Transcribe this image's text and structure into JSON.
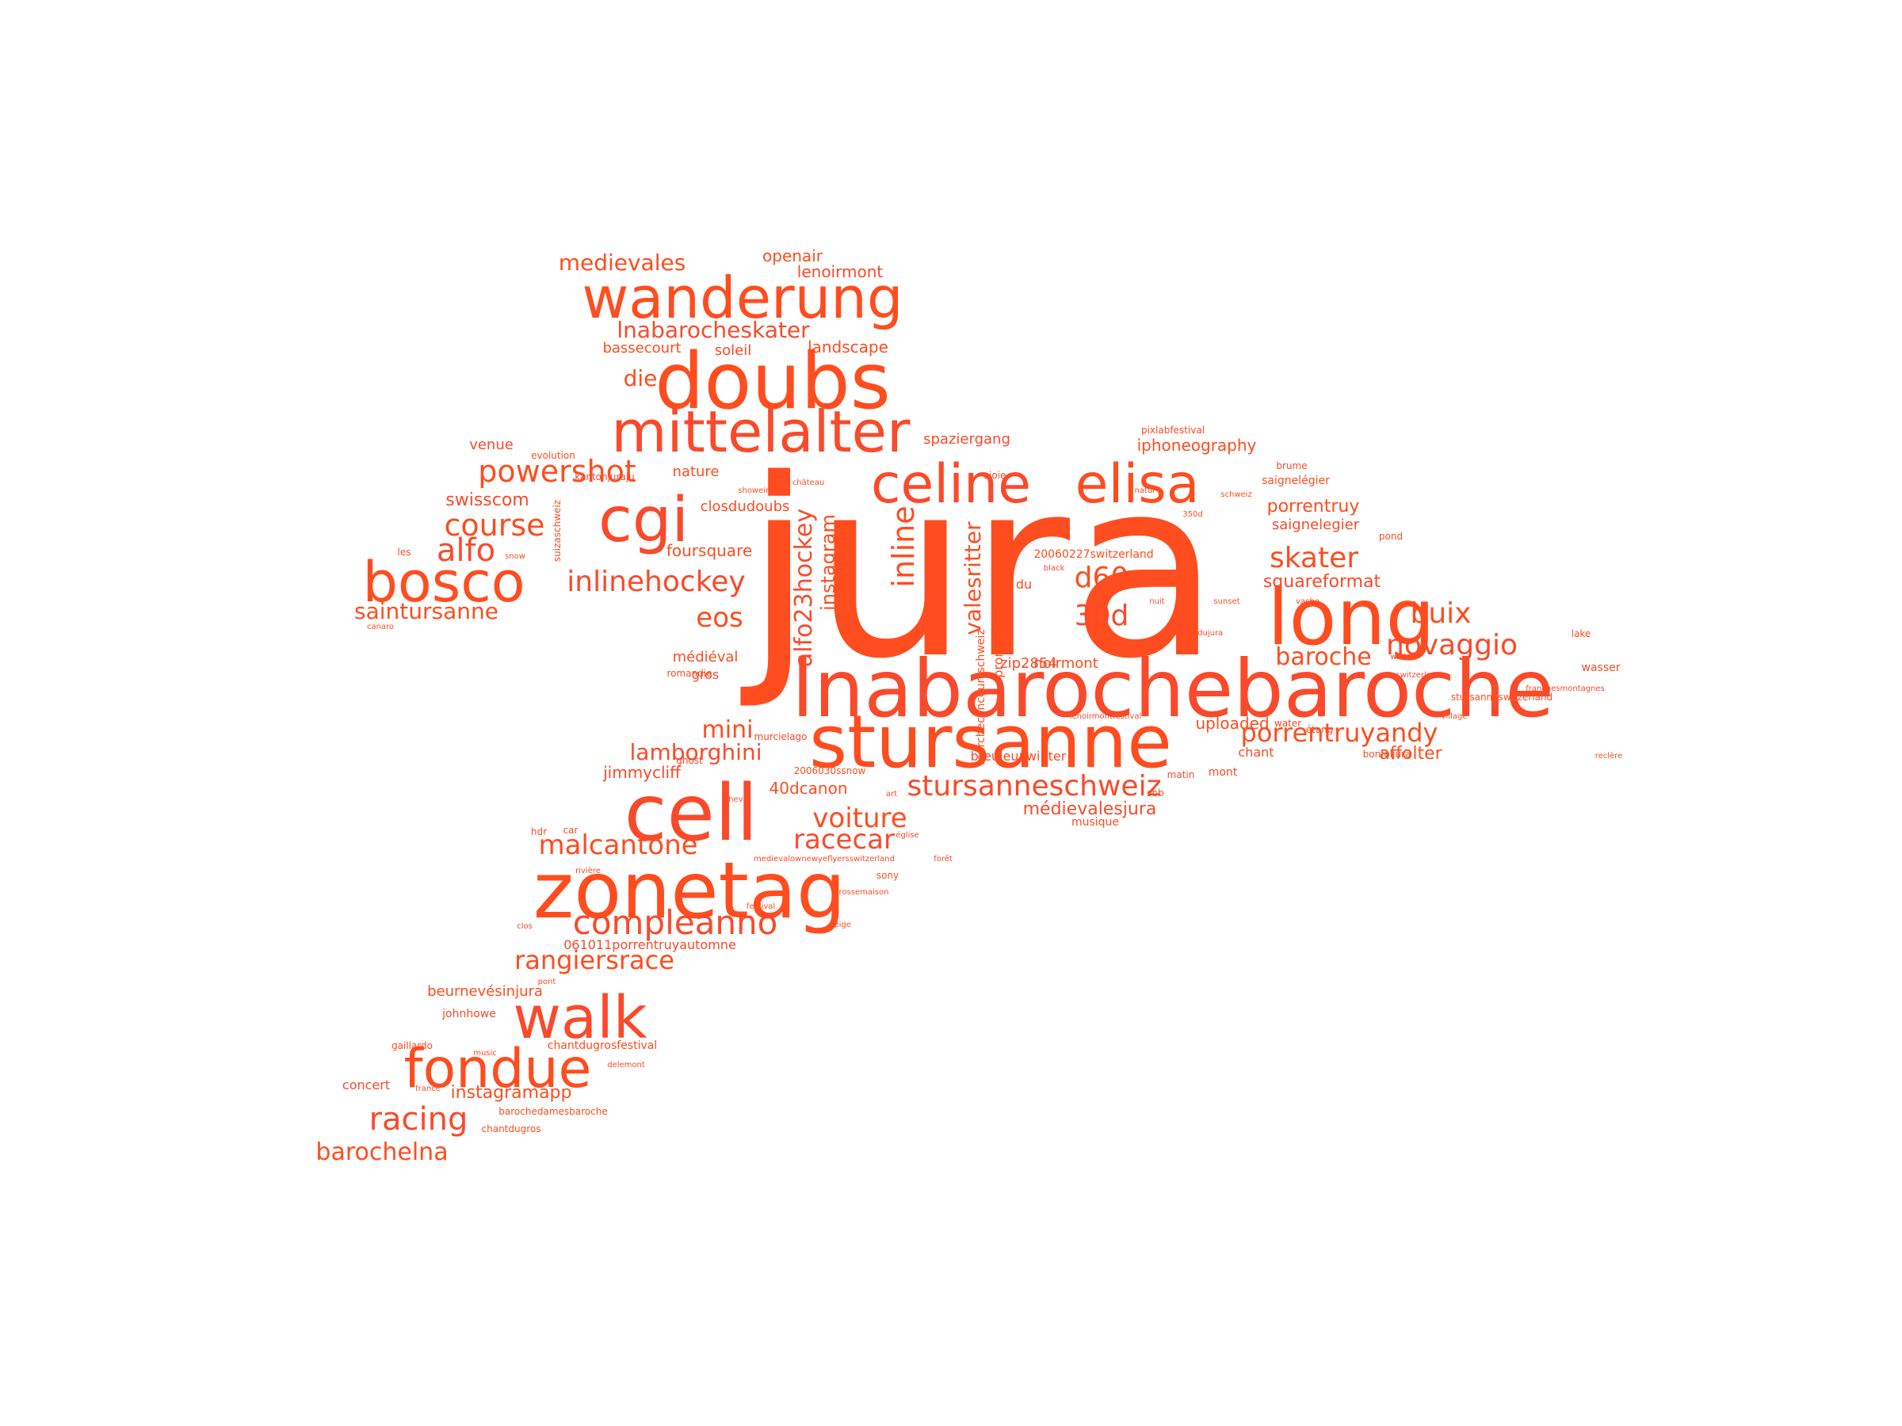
{
  "palette": [
    "#ff4d1f",
    "#ff5a2e",
    "#fa4a2b",
    "#ff6a3d"
  ],
  "words": [
    {
      "id": "jura",
      "text": "jura"
    },
    {
      "id": "lnabarochebaroche",
      "text": "lnabarochebaroche"
    },
    {
      "id": "stursanne",
      "text": "stursanne"
    },
    {
      "id": "zonetag",
      "text": "zonetag"
    },
    {
      "id": "cell",
      "text": "cell"
    },
    {
      "id": "doubs",
      "text": "doubs"
    },
    {
      "id": "mittelalter",
      "text": "mittelalter"
    },
    {
      "id": "wanderung",
      "text": "wanderung"
    },
    {
      "id": "celine",
      "text": "celine"
    },
    {
      "id": "elisa",
      "text": "elisa"
    },
    {
      "id": "long",
      "text": "long"
    },
    {
      "id": "bosco",
      "text": "bosco"
    },
    {
      "id": "cgi",
      "text": "cgi"
    },
    {
      "id": "walk",
      "text": "walk"
    },
    {
      "id": "fondue",
      "text": "fondue"
    },
    {
      "id": "compleanno",
      "text": "compleanno"
    },
    {
      "id": "powershot",
      "text": "powershot"
    },
    {
      "id": "inlinehockey",
      "text": "inlinehockey"
    },
    {
      "id": "course",
      "text": "course"
    },
    {
      "id": "alfo",
      "text": "alfo"
    },
    {
      "id": "skater",
      "text": "skater"
    },
    {
      "id": "novaggio",
      "text": "novaggio"
    },
    {
      "id": "buix",
      "text": "buix"
    },
    {
      "id": "malcantone",
      "text": "malcantone"
    },
    {
      "id": "racecar",
      "text": "racecar"
    },
    {
      "id": "voiture",
      "text": "voiture"
    },
    {
      "id": "stursanneschweiz",
      "text": "stursanneschweiz"
    },
    {
      "id": "porrentruyandy",
      "text": "porrentruyandy"
    },
    {
      "id": "racing",
      "text": "racing"
    },
    {
      "id": "barochelna",
      "text": "barochelna"
    },
    {
      "id": "rangiersrace",
      "text": "rangiersrace"
    },
    {
      "id": "lamborghini",
      "text": "lamborghini"
    },
    {
      "id": "mini",
      "text": "mini"
    },
    {
      "id": "d60",
      "text": "d60"
    },
    {
      "id": "30d",
      "text": "30d"
    },
    {
      "id": "eos",
      "text": "eos"
    },
    {
      "id": "inline",
      "text": "inline"
    },
    {
      "id": "alfo23hockey",
      "text": "alfo23hockey"
    },
    {
      "id": "valesritter",
      "text": "valesritter"
    },
    {
      "id": "instagram",
      "text": "instagram"
    },
    {
      "id": "baroche",
      "text": "baroche"
    },
    {
      "id": "medievales",
      "text": "medievales"
    },
    {
      "id": "lnabarocheskater",
      "text": "lnabarocheskater"
    },
    {
      "id": "saintursanne",
      "text": "saintursanne"
    },
    {
      "id": "swisscom",
      "text": "swisscom"
    },
    {
      "id": "die",
      "text": "die"
    },
    {
      "id": "openair",
      "text": "openair"
    },
    {
      "id": "lenoirmont",
      "text": "lenoirmont"
    },
    {
      "id": "bassecourt",
      "text": "bassecourt"
    },
    {
      "id": "soleil",
      "text": "soleil"
    },
    {
      "id": "landscape",
      "text": "landscape"
    },
    {
      "id": "squareformat",
      "text": "squareformat"
    },
    {
      "id": "affolter",
      "text": "affolter"
    },
    {
      "id": "medievalesjura",
      "text": "médievalesjura"
    },
    {
      "id": "foursquare",
      "text": "foursquare"
    },
    {
      "id": "40dcanon",
      "text": "40dcanon"
    },
    {
      "id": "jimmycliff",
      "text": "jimmycliff"
    },
    {
      "id": "instagramapp",
      "text": "instagramapp"
    },
    {
      "id": "porrentruy",
      "text": "porrentruy"
    },
    {
      "id": "saignelegier",
      "text": "saignelegier"
    },
    {
      "id": "iphoneography",
      "text": "iphoneography"
    },
    {
      "id": "spaziergang",
      "text": "spaziergang"
    },
    {
      "id": "nature",
      "text": "nature"
    },
    {
      "id": "venue",
      "text": "venue"
    },
    {
      "id": "closdudoubs",
      "text": "closdudoubs"
    },
    {
      "id": "uploaded",
      "text": "uploaded"
    },
    {
      "id": "chant",
      "text": "chant"
    },
    {
      "id": "noirmont",
      "text": "noirmont"
    },
    {
      "id": "zip2854",
      "text": "zip2854"
    },
    {
      "id": "20060227switzerland",
      "text": "20060227switzerland"
    },
    {
      "id": "breuleuxwinter",
      "text": "breuleuxwinter"
    },
    {
      "id": "musique",
      "text": "musique"
    },
    {
      "id": "medieval",
      "text": "médiéval"
    },
    {
      "id": "gros",
      "text": "gros"
    },
    {
      "id": "promenade",
      "text": "promenade"
    },
    {
      "id": "du",
      "text": "du"
    },
    {
      "id": "beurnevesinjura",
      "text": "beurnevésinjura"
    },
    {
      "id": "johnhowe",
      "text": "johnhowe"
    },
    {
      "id": "chantdugrosfestival",
      "text": "chantdugrosfestival"
    },
    {
      "id": "concert",
      "text": "concert"
    },
    {
      "id": "barochedamesbaroche",
      "text": "barochedamesbaroche"
    },
    {
      "id": "061011porrentruyautomne",
      "text": "061011porrentruyautomne"
    },
    {
      "id": "mont",
      "text": "mont"
    },
    {
      "id": "wasser",
      "text": "wasser"
    },
    {
      "id": "stursanneswitzerland",
      "text": "stursanneswitzerland"
    },
    {
      "id": "pixlabfestival",
      "text": "pixlabfestival"
    },
    {
      "id": "ajoie",
      "text": "ajoie"
    },
    {
      "id": "brume",
      "text": "brume"
    },
    {
      "id": "pond",
      "text": "pond"
    },
    {
      "id": "saignelegier2",
      "text": "saignelégier"
    },
    {
      "id": "les",
      "text": "les"
    },
    {
      "id": "evolution",
      "text": "evolution"
    },
    {
      "id": "kantonjuraju",
      "text": "kantonjuraju"
    },
    {
      "id": "gaillardo",
      "text": "gaillardo"
    },
    {
      "id": "murcielago",
      "text": "murcielago"
    },
    {
      "id": "romandie",
      "text": "romandie"
    },
    {
      "id": "sony",
      "text": "sony"
    },
    {
      "id": "ghost",
      "text": "ghost"
    },
    {
      "id": "hdr",
      "text": "hdr"
    },
    {
      "id": "car",
      "text": "car"
    },
    {
      "id": "lake",
      "text": "lake"
    },
    {
      "id": "water",
      "text": "water"
    },
    {
      "id": "etang",
      "text": "étang"
    },
    {
      "id": "bonfoljura",
      "text": "bonfoljura"
    },
    {
      "id": "franchesmontagnes",
      "text": "franchesmontagnes"
    },
    {
      "id": "sbb",
      "text": "sbb"
    },
    {
      "id": "matin",
      "text": "matin"
    },
    {
      "id": "canaro",
      "text": "canaro"
    },
    {
      "id": "delemont",
      "text": "delemont"
    },
    {
      "id": "france",
      "text": "france"
    },
    {
      "id": "chantdugros",
      "text": "chantdugros"
    },
    {
      "id": "cantondujura",
      "text": "cantondujura"
    },
    {
      "id": "showeing",
      "text": "showeing"
    },
    {
      "id": "marcheconcoursschweiz",
      "text": "marcheconcoursschweiz"
    },
    {
      "id": "lenoirmontfestival",
      "text": "lenoirmontfestival"
    },
    {
      "id": "rossemaison",
      "text": "rossemaison"
    },
    {
      "id": "clos",
      "text": "clos"
    },
    {
      "id": "350d",
      "text": "350d"
    },
    {
      "id": "natur",
      "text": "natur"
    },
    {
      "id": "2006030sshow",
      "text": "2006030ssnow"
    },
    {
      "id": "medievalfolk",
      "text": "medievalownewyeflyersswitzerland"
    },
    {
      "id": "suizaschweiz",
      "text": "suizaschweiz"
    },
    {
      "id": "lenoirmontwater",
      "text": "etang"
    },
    {
      "id": "switzerlanduploadedby",
      "text": "switzerland"
    },
    {
      "id": "schweiz",
      "text": "schweiz"
    },
    {
      "id": "nuit",
      "text": "nuit"
    },
    {
      "id": "reclere",
      "text": "reclère"
    },
    {
      "id": "black",
      "text": "black"
    },
    {
      "id": "sunset",
      "text": "sunset"
    },
    {
      "id": "winter",
      "text": "winter"
    },
    {
      "id": "snow",
      "text": "snow"
    },
    {
      "id": "music",
      "text": "music"
    },
    {
      "id": "festival",
      "text": "festival"
    },
    {
      "id": "art",
      "text": "art"
    },
    {
      "id": "chateau",
      "text": "château"
    },
    {
      "id": "vache",
      "text": "vache"
    },
    {
      "id": "cheval",
      "text": "cheval"
    },
    {
      "id": "foret",
      "text": "forêt"
    },
    {
      "id": "neige",
      "text": "neige"
    },
    {
      "id": "riviere",
      "text": "rivière"
    },
    {
      "id": "village",
      "text": "village"
    },
    {
      "id": "eglise",
      "text": "église"
    },
    {
      "id": "pont",
      "text": "pont"
    }
  ]
}
